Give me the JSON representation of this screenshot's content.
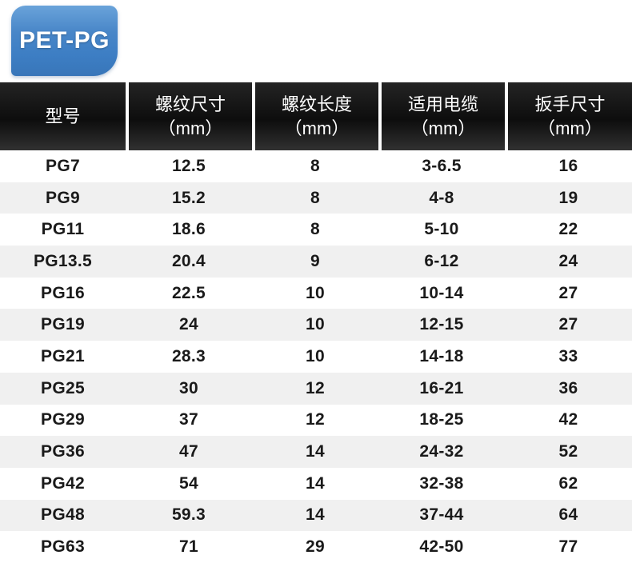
{
  "badge": {
    "label": "PET-PG",
    "color": "#3d7ec4"
  },
  "table": {
    "header_bg": "#111111",
    "stripe_color": "#f0f0f0",
    "columns": [
      {
        "label": "型号",
        "unit": ""
      },
      {
        "label": "螺纹尺寸",
        "unit": "（mm）"
      },
      {
        "label": "螺纹长度",
        "unit": "（mm）"
      },
      {
        "label": "适用电缆",
        "unit": "（mm）"
      },
      {
        "label": "扳手尺寸",
        "unit": "（mm）"
      }
    ],
    "rows": [
      [
        "PG7",
        "12.5",
        "8",
        "3-6.5",
        "16"
      ],
      [
        "PG9",
        "15.2",
        "8",
        "4-8",
        "19"
      ],
      [
        "PG11",
        "18.6",
        "8",
        "5-10",
        "22"
      ],
      [
        "PG13.5",
        "20.4",
        "9",
        "6-12",
        "24"
      ],
      [
        "PG16",
        "22.5",
        "10",
        "10-14",
        "27"
      ],
      [
        "PG19",
        "24",
        "10",
        "12-15",
        "27"
      ],
      [
        "PG21",
        "28.3",
        "10",
        "14-18",
        "33"
      ],
      [
        "PG25",
        "30",
        "12",
        "16-21",
        "36"
      ],
      [
        "PG29",
        "37",
        "12",
        "18-25",
        "42"
      ],
      [
        "PG36",
        "47",
        "14",
        "24-32",
        "52"
      ],
      [
        "PG42",
        "54",
        "14",
        "32-38",
        "62"
      ],
      [
        "PG48",
        "59.3",
        "14",
        "37-44",
        "64"
      ],
      [
        "PG63",
        "71",
        "29",
        "42-50",
        "77"
      ]
    ]
  }
}
